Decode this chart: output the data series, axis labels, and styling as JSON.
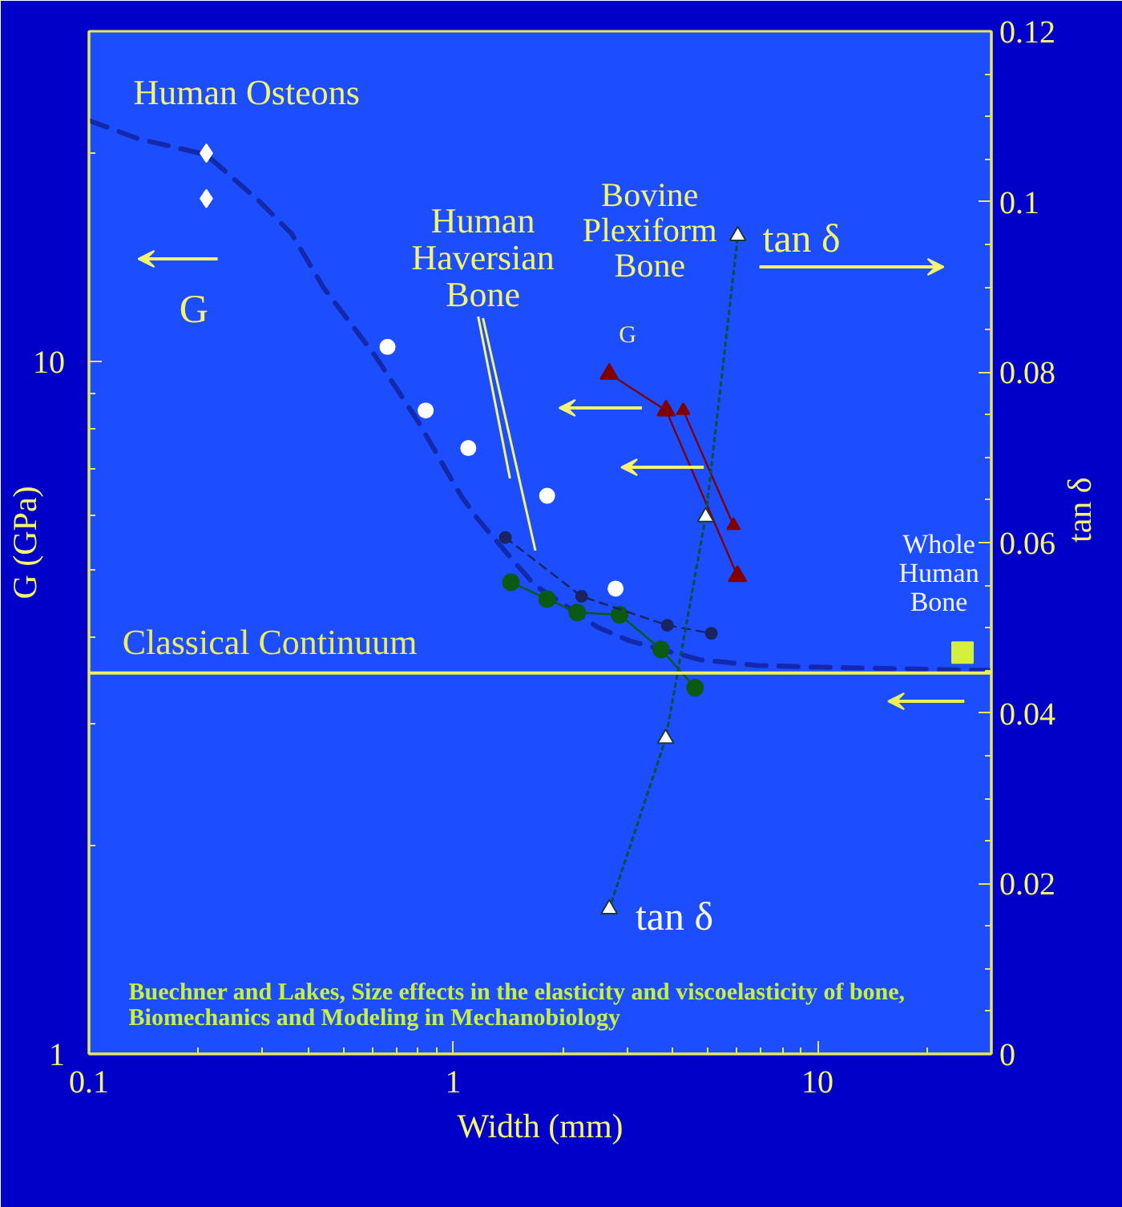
{
  "chart_data": {
    "type": "line",
    "xlabel": "Width (mm)",
    "ylabel": "G (GPa)",
    "y2label": "tan δ",
    "log": "xy",
    "xlim": [
      0.1,
      30
    ],
    "ylim": [
      1,
      30
    ],
    "y2lim": [
      0,
      0.12
    ],
    "xticks": [
      0.1,
      {
        "value": 0.2,
        "label": null
      },
      {
        "value": 0.3,
        "label": null
      },
      {
        "value": 0.4,
        "label": null
      },
      {
        "value": 0.5,
        "label": null
      },
      {
        "value": 0.6,
        "label": null
      },
      {
        "value": 0.7,
        "label": null
      },
      {
        "value": 0.8,
        "label": null
      },
      {
        "value": 0.9,
        "label": null
      },
      1,
      {
        "value": 2,
        "label": null
      },
      {
        "value": 3,
        "label": null
      },
      {
        "value": 4,
        "label": null
      },
      {
        "value": 5,
        "label": null
      },
      {
        "value": 6,
        "label": null
      },
      {
        "value": 7,
        "label": null
      },
      {
        "value": 8,
        "label": null
      },
      {
        "value": 9,
        "label": null
      },
      10,
      {
        "value": 20,
        "label": null
      }
    ],
    "yticks": [
      1,
      {
        "value": 2,
        "label": null
      },
      {
        "value": 3,
        "label": null
      },
      {
        "value": 4,
        "label": null
      },
      {
        "value": 5,
        "label": null
      },
      {
        "value": 6,
        "label": null
      },
      {
        "value": 7,
        "label": null
      },
      {
        "value": 8,
        "label": null
      },
      {
        "value": 9,
        "label": null
      },
      10,
      {
        "value": 20,
        "label": null
      }
    ],
    "y2ticks": [
      0,
      {
        "value": 0.005,
        "label": null
      },
      {
        "value": 0.01,
        "label": null
      },
      {
        "value": 0.015,
        "label": null
      },
      0.02,
      {
        "value": 0.025,
        "label": null
      },
      {
        "value": 0.03,
        "label": null
      },
      {
        "value": 0.035,
        "label": null
      },
      0.04,
      {
        "value": 0.045,
        "label": null
      },
      {
        "value": 0.05,
        "label": null
      },
      {
        "value": 0.055,
        "label": null
      },
      0.06,
      {
        "value": 0.065,
        "label": null
      },
      {
        "value": 0.07,
        "label": null
      },
      {
        "value": 0.075,
        "label": null
      },
      0.08,
      {
        "value": 0.085,
        "label": null
      },
      {
        "value": 0.09,
        "label": null
      },
      {
        "value": 0.095,
        "label": null
      },
      0.1,
      {
        "value": 0.105,
        "label": null
      },
      {
        "value": 0.11,
        "label": null
      },
      {
        "value": 0.115,
        "label": null
      },
      0.12
    ],
    "grid": false,
    "series": [
      {
        "marker": "none",
        "line_style": "dashed",
        "color": "#1428aa",
        "x": [
          0.1,
          0.136,
          0.21,
          0.295,
          0.36,
          0.44,
          0.61,
          0.8,
          1.05,
          1.16,
          1.42,
          1.67,
          2.5,
          3.05,
          4.75,
          6.8,
          10,
          30
        ],
        "values": [
          22.3,
          21.0,
          19.9,
          17.0,
          15.3,
          12.8,
          10.2,
          8.2,
          6.4,
          5.95,
          5.25,
          4.76,
          4.13,
          3.95,
          3.71,
          3.64,
          3.62,
          3.58
        ]
      },
      {
        "type": "scatter",
        "marker": "diamond",
        "color": "#ffffff",
        "x": [
          0.21,
          0.21
        ],
        "values": [
          20,
          17.2
        ]
      },
      {
        "type": "scatter",
        "marker": "circle",
        "color": "#ffffff",
        "x": [
          0.66,
          0.84,
          1.1,
          1.81,
          2.79
        ],
        "values": [
          10.5,
          8.5,
          7.5,
          6.4,
          4.7
        ]
      },
      {
        "marker": "circle",
        "line_style": "solid",
        "color": "#0a5a14",
        "x": [
          1.44,
          1.81,
          2.19,
          2.86,
          3.72,
          4.61
        ],
        "values": [
          4.8,
          4.54,
          4.34,
          4.31,
          3.84,
          3.38
        ]
      },
      {
        "marker": "circle",
        "line_style": "dashed",
        "color": "#1a2460",
        "x": [
          1.39,
          2.25,
          3.87,
          5.11
        ],
        "values": [
          5.57,
          4.58,
          4.16,
          4.05
        ]
      },
      {
        "marker": "triangle",
        "line_style": "solid",
        "color": "#800000",
        "x": [
          2.68,
          3.84,
          6.03
        ],
        "values": [
          9.6,
          8.5,
          4.9
        ]
      },
      {
        "marker": "triangle",
        "line_style": "solid",
        "color": "#800000",
        "x": [
          4.28,
          5.88
        ],
        "values": [
          8.5,
          5.8
        ]
      },
      {
        "marker": "none",
        "line_style": "dotted",
        "axis": "y2",
        "color": "#0a5040",
        "x": [
          2.68,
          3.83,
          4.93,
          6.04
        ],
        "values": [
          0.017,
          0.037,
          0.063,
          0.096
        ]
      },
      {
        "type": "scatter",
        "marker": "triangle",
        "axis": "y2",
        "color": "#ffffff",
        "x": [
          2.68,
          3.83,
          4.93,
          6.04
        ],
        "values": [
          0.017,
          0.037,
          0.063,
          0.096
        ]
      },
      {
        "type": "scatter",
        "marker": "square",
        "color": "#d4f03c",
        "x": [
          25
        ],
        "values": [
          3.8
        ]
      }
    ],
    "ref_lines": [
      {
        "axis": "y",
        "value": 3.55,
        "label": "Classical Continuum",
        "color": "#eeee55"
      }
    ],
    "annotations": [
      "Human Osteons",
      "G",
      "Human Haversian Bone",
      "Bovine Plexiform Bone",
      "tan δ",
      "G",
      "tan δ",
      "Whole Human Bone",
      "Buechner and Lakes, Size effects in the elasticity and viscoelasticity of bone, Biomechanics and Modeling in Mechanobiology"
    ]
  }
}
